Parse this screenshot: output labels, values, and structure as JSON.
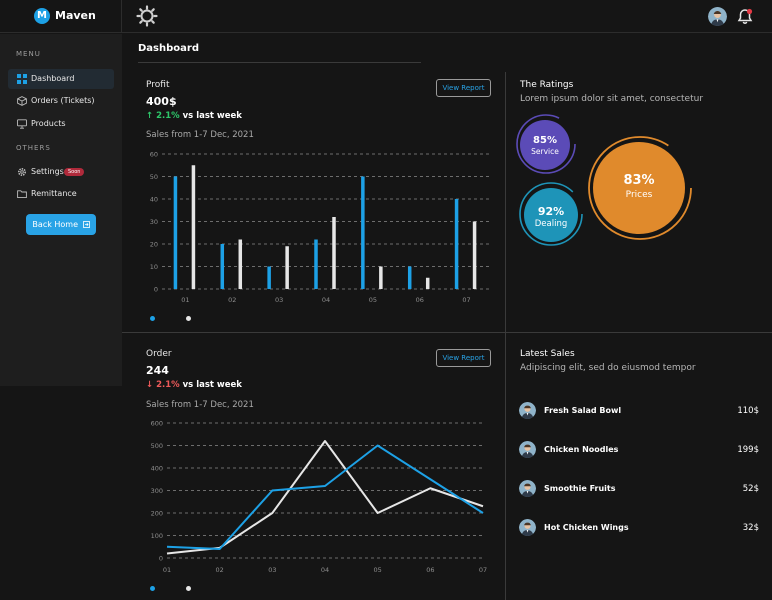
{
  "app": {
    "name": "Maven",
    "logo_letter": "M"
  },
  "sidebar": {
    "menu_heading": "MENU",
    "others_heading": "OTHERS",
    "items": [
      {
        "label": "Dashboard",
        "icon": "grid-icon",
        "active": true
      },
      {
        "label": "Orders (Tickets)",
        "icon": "cube-icon"
      },
      {
        "label": "Products",
        "icon": "monitor-icon"
      },
      {
        "label": "Settings",
        "icon": "gear-icon",
        "badge": "Soon"
      },
      {
        "label": "Remittance",
        "icon": "folder-icon"
      }
    ],
    "back_button": "Back Home"
  },
  "page_title": "Dashboard",
  "profit": {
    "label": "Profit",
    "value": "400$",
    "change_pct": "2.1%",
    "change_text": " vs last week",
    "direction": "up",
    "subtitle": "Sales from 1-7 Dec, 2021",
    "button": "View Report"
  },
  "order": {
    "label": "Order",
    "value": "244",
    "change_pct": "2.1%",
    "change_text": " vs last week",
    "direction": "down",
    "subtitle": "Sales from 1-7 Dec, 2021",
    "button": "View Report"
  },
  "ratings": {
    "title": "The Ratings",
    "subtitle": "Lorem ipsum dolor sit amet, consectetur",
    "items": [
      {
        "value": "85%",
        "label": "Service",
        "color": "#5b4bb7"
      },
      {
        "value": "92%",
        "label": "Dealing",
        "color": "#1e94b8"
      },
      {
        "value": "83%",
        "label": "Prices",
        "color": "#e08a2c"
      }
    ]
  },
  "latest_sales": {
    "title": "Latest Sales",
    "subtitle": "Adipiscing elit, sed do eiusmod tempor",
    "items": [
      {
        "name": "Fresh Salad Bowl",
        "price": "110$"
      },
      {
        "name": "Chicken Noodles",
        "price": "199$"
      },
      {
        "name": "Smoothie Fruits",
        "price": "52$"
      },
      {
        "name": "Hot Chicken Wings",
        "price": "32$"
      }
    ]
  },
  "chart_data": [
    {
      "type": "bar",
      "categories": [
        "01",
        "02",
        "03",
        "04",
        "05",
        "06",
        "07"
      ],
      "series": [
        {
          "values": [
            50,
            20,
            10,
            22,
            50,
            10,
            40
          ],
          "color": "#1da1e6"
        },
        {
          "values": [
            55,
            22,
            19,
            32,
            10,
            5,
            30
          ],
          "color": "#e6e6e6"
        }
      ],
      "yticks": [
        0,
        10,
        20,
        30,
        40,
        50,
        60
      ],
      "ylim": [
        0,
        60
      ],
      "grid": true
    },
    {
      "type": "line",
      "categories": [
        "01",
        "02",
        "03",
        "04",
        "05",
        "06",
        "07"
      ],
      "series": [
        {
          "values": [
            50,
            40,
            300,
            320,
            500,
            350,
            200
          ],
          "color": "#1da1e6"
        },
        {
          "values": [
            20,
            45,
            200,
            520,
            200,
            310,
            230
          ],
          "color": "#e6e6e6"
        }
      ],
      "yticks": [
        0,
        100,
        200,
        300,
        400,
        500,
        600
      ],
      "ylim": [
        0,
        600
      ],
      "grid": true
    }
  ]
}
